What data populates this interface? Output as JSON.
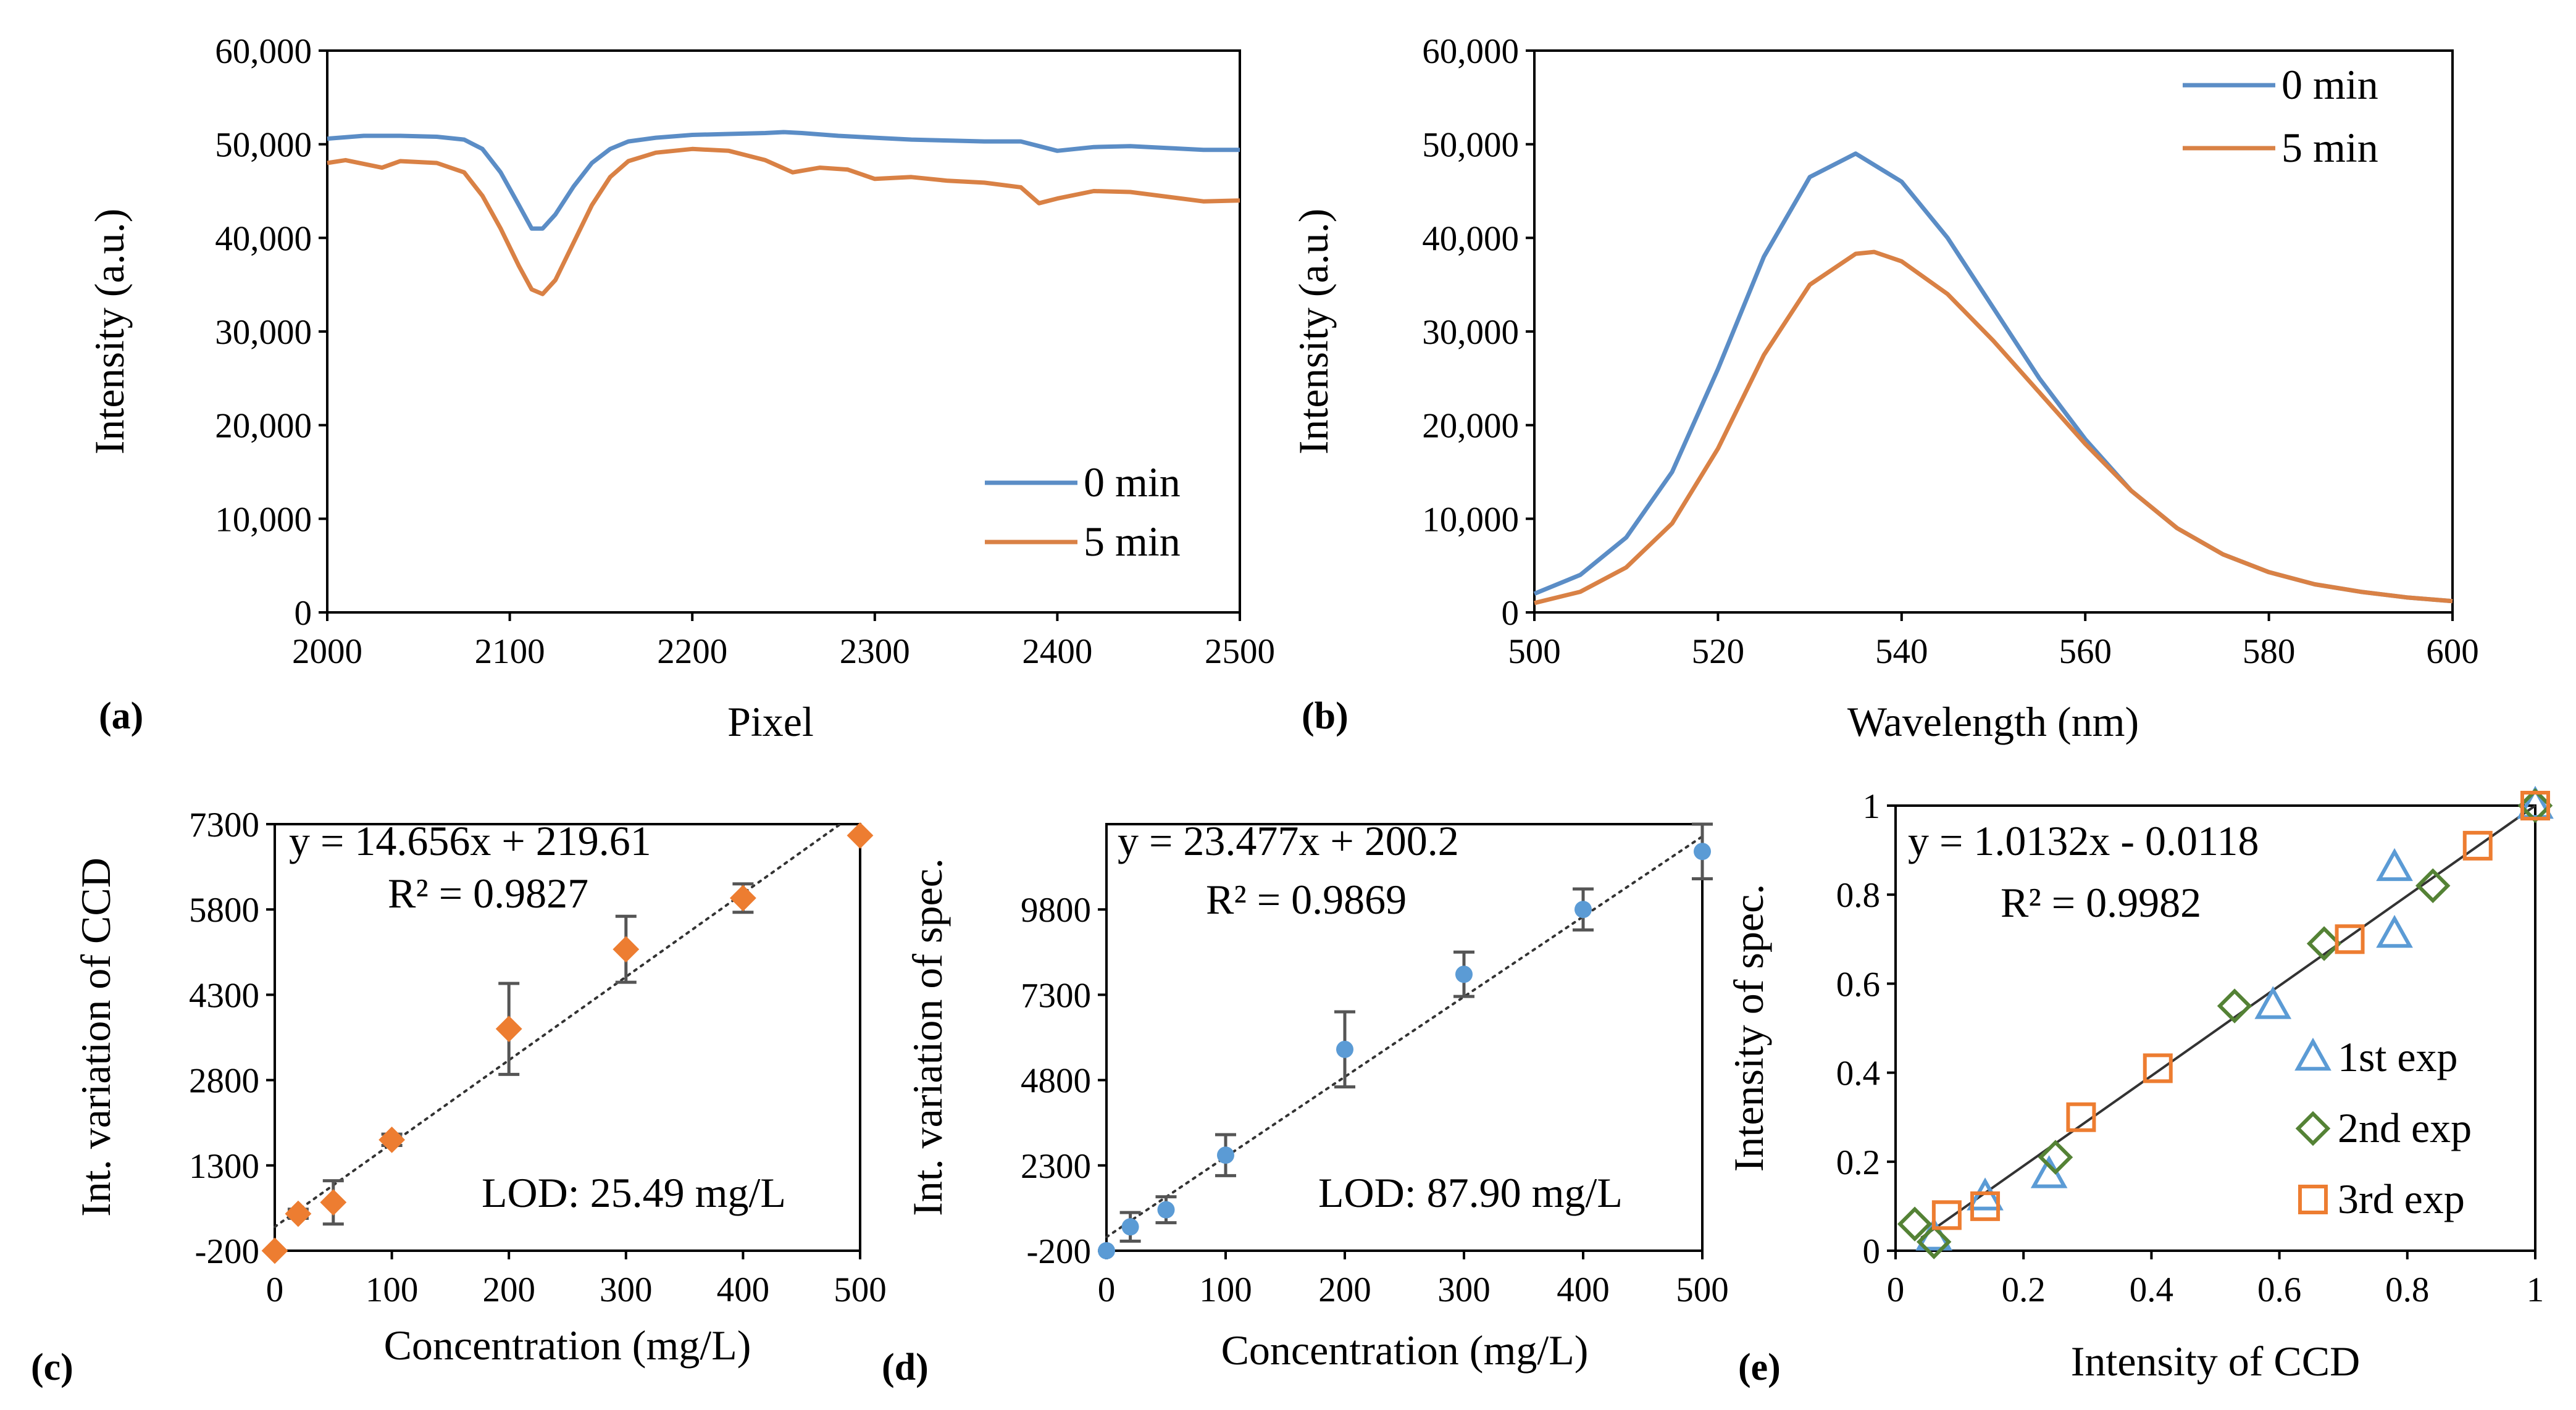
{
  "figure": {
    "panels": [
      "(a)",
      "(b)",
      "(c)",
      "(d)",
      "(e)"
    ]
  },
  "chart_data": [
    {
      "id": "a",
      "type": "line",
      "panel_label": "(a)",
      "xlabel": "Pixel",
      "ylabel": "Intensity (a.u.)",
      "xlim": [
        2000,
        2500
      ],
      "ylim": [
        0,
        60000
      ],
      "xticks": [
        2000,
        2100,
        2200,
        2300,
        2400,
        2500
      ],
      "xtick_labels": [
        "2000",
        "2100",
        "2200",
        "2300",
        "2400",
        "2500"
      ],
      "yticks": [
        0,
        10000,
        20000,
        30000,
        40000,
        50000,
        60000
      ],
      "ytick_labels": [
        "0",
        "10,000",
        "20,000",
        "30,000",
        "40,000",
        "50,000",
        "60,000"
      ],
      "legend_position": "bottom-right",
      "series": [
        {
          "name": "0 min",
          "color": "#5B8DC6",
          "x": [
            2000,
            2020,
            2040,
            2060,
            2075,
            2085,
            2095,
            2105,
            2112,
            2118,
            2125,
            2135,
            2145,
            2155,
            2165,
            2180,
            2200,
            2220,
            2240,
            2250,
            2260,
            2280,
            2300,
            2320,
            2340,
            2360,
            2380,
            2390,
            2400,
            2420,
            2440,
            2460,
            2480,
            2500
          ],
          "y": [
            50600,
            50900,
            50900,
            50800,
            50500,
            49500,
            47000,
            43500,
            41000,
            41000,
            42500,
            45500,
            48000,
            49500,
            50300,
            50700,
            51000,
            51100,
            51200,
            51300,
            51200,
            50900,
            50700,
            50500,
            50400,
            50300,
            50300,
            49800,
            49300,
            49700,
            49800,
            49600,
            49400,
            49400
          ]
        },
        {
          "name": "5 min",
          "color": "#D98145",
          "x": [
            2000,
            2010,
            2030,
            2040,
            2060,
            2075,
            2085,
            2095,
            2105,
            2112,
            2118,
            2125,
            2135,
            2145,
            2155,
            2165,
            2180,
            2200,
            2220,
            2240,
            2255,
            2270,
            2285,
            2300,
            2320,
            2340,
            2360,
            2380,
            2390,
            2400,
            2420,
            2440,
            2460,
            2480,
            2500
          ],
          "y": [
            48000,
            48300,
            47500,
            48200,
            48000,
            47000,
            44500,
            41000,
            37000,
            34500,
            34000,
            35500,
            39500,
            43500,
            46500,
            48200,
            49100,
            49500,
            49300,
            48300,
            47000,
            47500,
            47300,
            46300,
            46500,
            46100,
            45900,
            45400,
            43700,
            44200,
            45000,
            44900,
            44400,
            43900,
            44000
          ]
        }
      ]
    },
    {
      "id": "b",
      "type": "line",
      "panel_label": "(b)",
      "xlabel": "Wavelength (nm)",
      "ylabel": "Intensity (a.u.)",
      "xlim": [
        500,
        600
      ],
      "ylim": [
        0,
        60000
      ],
      "xticks": [
        500,
        520,
        540,
        560,
        580,
        600
      ],
      "xtick_labels": [
        "500",
        "520",
        "540",
        "560",
        "580",
        "600"
      ],
      "yticks": [
        0,
        10000,
        20000,
        30000,
        40000,
        50000,
        60000
      ],
      "ytick_labels": [
        "0",
        "10,000",
        "20,000",
        "30,000",
        "40,000",
        "50,000",
        "60,000"
      ],
      "legend_position": "top-right",
      "series": [
        {
          "name": "0 min",
          "color": "#5B8DC6",
          "x": [
            500,
            505,
            510,
            515,
            520,
            525,
            530,
            535,
            540,
            545,
            550,
            555,
            560,
            565,
            570,
            575,
            580,
            585,
            590,
            595,
            600
          ],
          "y": [
            2000,
            4000,
            8000,
            15000,
            26000,
            38000,
            46500,
            49000,
            46000,
            40000,
            32500,
            25000,
            18500,
            13000,
            9000,
            6200,
            4300,
            3000,
            2200,
            1600,
            1200
          ]
        },
        {
          "name": "5 min",
          "color": "#D98145",
          "x": [
            500,
            505,
            510,
            515,
            520,
            525,
            530,
            535,
            537,
            540,
            545,
            550,
            555,
            560,
            565,
            570,
            575,
            580,
            585,
            590,
            595,
            600
          ],
          "y": [
            1000,
            2200,
            4800,
            9500,
            17500,
            27500,
            35000,
            38300,
            38500,
            37500,
            34000,
            29000,
            23500,
            18000,
            13000,
            9000,
            6200,
            4300,
            3000,
            2200,
            1600,
            1200
          ]
        }
      ]
    },
    {
      "id": "c",
      "type": "scatter",
      "panel_label": "(c)",
      "xlabel": "Concentration (mg/L)",
      "ylabel": "Int. variation of CCD",
      "xlim": [
        0,
        500
      ],
      "ylim": [
        -200,
        7300
      ],
      "xticks": [
        0,
        100,
        200,
        300,
        400,
        500
      ],
      "xtick_labels": [
        "0",
        "100",
        "200",
        "300",
        "400",
        "500"
      ],
      "yticks": [
        -200,
        1300,
        2800,
        4300,
        5800,
        7300
      ],
      "ytick_labels": [
        "-200",
        "1300",
        "2800",
        "4300",
        "5800",
        "7300"
      ],
      "color": "#ED7D31",
      "marker": "diamond",
      "x": [
        0,
        20,
        50,
        100,
        200,
        300,
        400,
        500
      ],
      "y": [
        -200,
        450,
        650,
        1750,
        3700,
        5100,
        6000,
        7100
      ],
      "err": [
        0,
        80,
        380,
        100,
        800,
        580,
        250,
        0
      ],
      "trendline": {
        "slope": 14.656,
        "intercept": 219.61
      },
      "equation": "y = 14.656x + 219.61",
      "r2": "R² = 0.9827",
      "lod": "LOD: 25.49 mg/L"
    },
    {
      "id": "d",
      "type": "scatter",
      "panel_label": "(d)",
      "xlabel": "Concentration (mg/L)",
      "ylabel": "Int. variation of spec.",
      "xlim": [
        0,
        500
      ],
      "ylim": [
        -200,
        12300
      ],
      "xticks": [
        0,
        100,
        200,
        300,
        400,
        500
      ],
      "xtick_labels": [
        "0",
        "100",
        "200",
        "300",
        "400",
        "500"
      ],
      "yticks": [
        -200,
        2300,
        4800,
        7300,
        9800
      ],
      "ytick_labels": [
        "-200",
        "2300",
        "4800",
        "7300",
        "9800"
      ],
      "color": "#5B9BD5",
      "marker": "circle",
      "x": [
        0,
        20,
        50,
        100,
        200,
        300,
        400,
        500
      ],
      "y": [
        -200,
        500,
        1000,
        2600,
        5700,
        7900,
        9800,
        11500
      ],
      "err": [
        0,
        420,
        380,
        600,
        1100,
        650,
        600,
        800
      ],
      "trendline": {
        "slope": 23.477,
        "intercept": 200.2
      },
      "equation": "y = 23.477x + 200.2",
      "r2": "R² = 0.9869",
      "lod": "LOD: 87.90 mg/L"
    },
    {
      "id": "e",
      "type": "scatter",
      "panel_label": "(e)",
      "xlabel": "Intensity of CCD",
      "ylabel": "Intensity of spec.",
      "xlim": [
        0,
        1
      ],
      "ylim": [
        0,
        1
      ],
      "xticks": [
        0,
        0.2,
        0.4,
        0.6,
        0.8,
        1
      ],
      "xtick_labels": [
        "0",
        "0.2",
        "0.4",
        "0.6",
        "0.8",
        "1"
      ],
      "yticks": [
        0,
        0.2,
        0.4,
        0.6,
        0.8,
        1
      ],
      "ytick_labels": [
        "0",
        "0.2",
        "0.4",
        "0.6",
        "0.8",
        "1"
      ],
      "trendline": {
        "slope": 1.0132,
        "intercept": -0.0118
      },
      "equation": "y = 1.0132x  - 0.0118",
      "r2": "R² = 0.9982",
      "legend_position": "bottom-right",
      "series": [
        {
          "name": "1st exp",
          "marker": "triangle",
          "color": "#5B9BD5",
          "x": [
            0.06,
            0.14,
            0.24,
            0.59,
            0.78,
            0.78,
            1.0
          ],
          "y": [
            0.03,
            0.12,
            0.17,
            0.55,
            0.71,
            0.86,
            1.0
          ]
        },
        {
          "name": "2nd exp",
          "marker": "diamond",
          "color": "#548235",
          "x": [
            0.03,
            0.06,
            0.25,
            0.53,
            0.67,
            0.84,
            1.0
          ],
          "y": [
            0.06,
            0.02,
            0.21,
            0.55,
            0.69,
            0.82,
            1.0
          ]
        },
        {
          "name": "3rd exp",
          "marker": "square",
          "color": "#ED7D31",
          "x": [
            0.08,
            0.14,
            0.29,
            0.41,
            0.71,
            0.91,
            1.0
          ],
          "y": [
            0.08,
            0.1,
            0.3,
            0.41,
            0.7,
            0.91,
            1.0
          ]
        }
      ]
    }
  ]
}
